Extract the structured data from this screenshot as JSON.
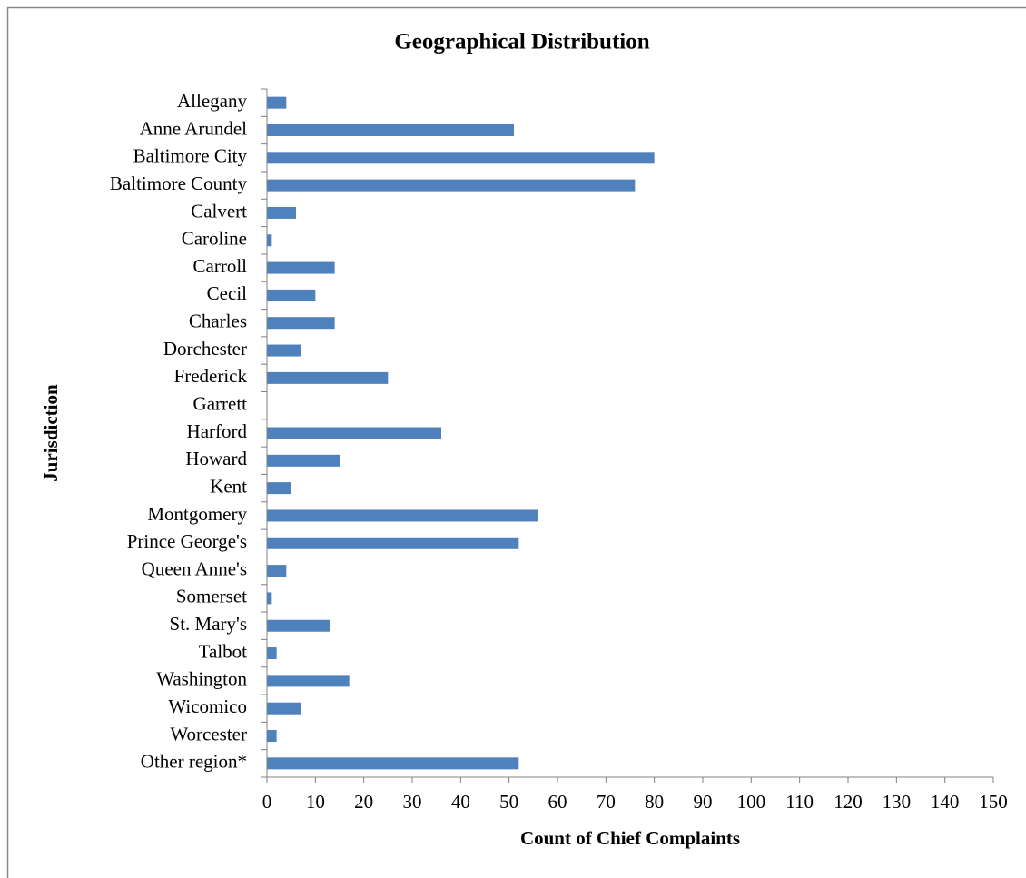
{
  "chart_data": {
    "type": "bar",
    "orientation": "horizontal",
    "title": "Geographical Distribution",
    "x_label": "Count of Chief Complaints",
    "y_label": "Jurisdiction",
    "categories": [
      "Allegany",
      "Anne Arundel",
      "Baltimore City",
      "Baltimore County",
      "Calvert",
      "Caroline",
      "Carroll",
      "Cecil",
      "Charles",
      "Dorchester",
      "Frederick",
      "Garrett",
      "Harford",
      "Howard",
      "Kent",
      "Montgomery",
      "Prince George's",
      "Queen Anne's",
      "Somerset",
      "St. Mary's",
      "Talbot",
      "Washington",
      "Wicomico",
      "Worcester",
      "Other region*"
    ],
    "values": [
      4,
      51,
      80,
      76,
      6,
      1,
      14,
      10,
      14,
      7,
      25,
      0,
      36,
      15,
      5,
      56,
      52,
      4,
      1,
      13,
      2,
      17,
      7,
      2,
      52
    ],
    "color": "#4f81bd",
    "xlim": [
      0,
      150
    ],
    "xticks": [
      0,
      10,
      20,
      30,
      40,
      50,
      60,
      70,
      80,
      90,
      100,
      110,
      120,
      130,
      140,
      150
    ]
  }
}
